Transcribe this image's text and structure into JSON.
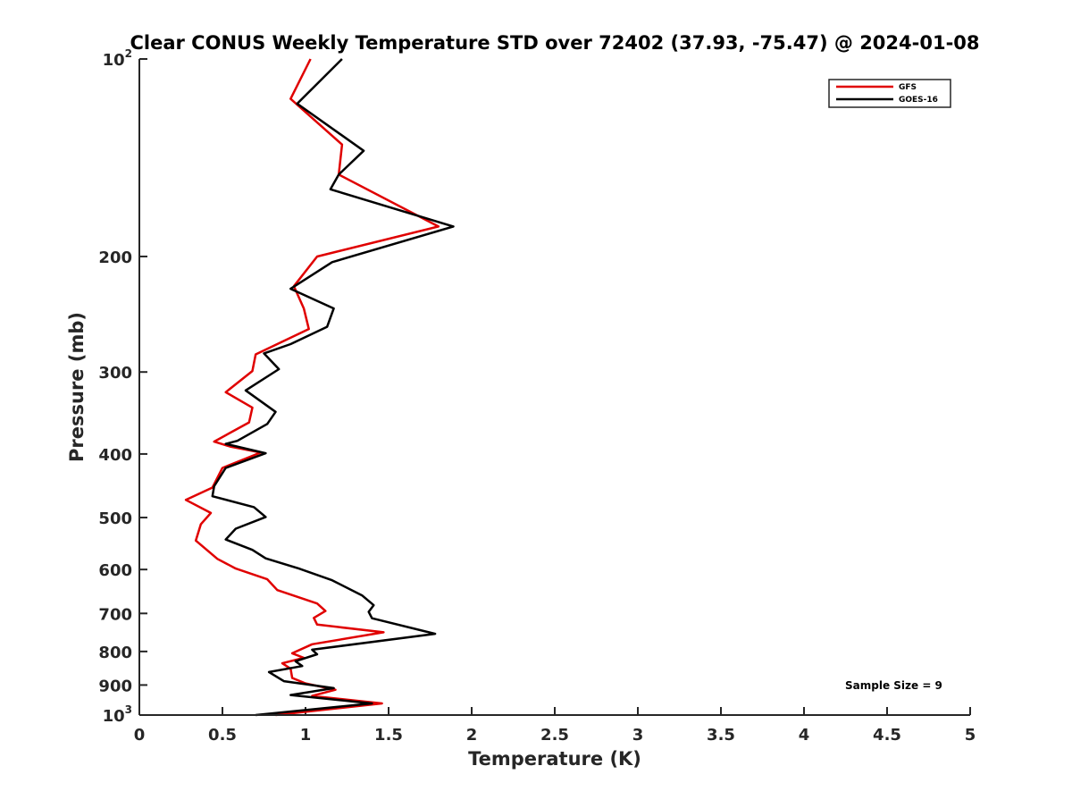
{
  "chart_data": {
    "type": "line",
    "title": "Clear CONUS Weekly Temperature STD over 72402 (37.93, -75.47) @ 2024-01-08",
    "xlabel": "Temperature (K)",
    "ylabel": "Pressure (mb)",
    "xlim": [
      0,
      5
    ],
    "ylim": [
      100,
      1000
    ],
    "yscale": "log",
    "yreversed": true,
    "x_ticks": [
      0,
      0.5,
      1,
      1.5,
      2,
      2.5,
      3,
      3.5,
      4,
      4.5,
      5
    ],
    "x_tick_labels": [
      "0",
      "0.5",
      "1",
      "1.5",
      "2",
      "2.5",
      "3",
      "3.5",
      "4",
      "4.5",
      "5"
    ],
    "y_ticks": [
      {
        "value": 100,
        "base": "10",
        "exp": "2"
      },
      {
        "value": 200,
        "label": "200"
      },
      {
        "value": 300,
        "label": "300"
      },
      {
        "value": 400,
        "label": "400"
      },
      {
        "value": 500,
        "label": "500"
      },
      {
        "value": 600,
        "label": "600"
      },
      {
        "value": 700,
        "label": "700"
      },
      {
        "value": 800,
        "label": "800"
      },
      {
        "value": 900,
        "label": "900"
      },
      {
        "value": 1000,
        "base": "10",
        "exp": "3"
      }
    ],
    "legend_position": "top-right",
    "annotation": "Sample Size = 9",
    "series": [
      {
        "name": "GFS",
        "color": "#e00000",
        "points": [
          [
            1.03,
            100
          ],
          [
            0.91,
            115
          ],
          [
            1.22,
            135
          ],
          [
            1.2,
            150
          ],
          [
            1.8,
            180
          ],
          [
            1.07,
            200
          ],
          [
            0.93,
            222
          ],
          [
            0.99,
            240
          ],
          [
            1.02,
            258
          ],
          [
            0.7,
            282
          ],
          [
            0.68,
            299
          ],
          [
            0.52,
            322
          ],
          [
            0.68,
            340
          ],
          [
            0.66,
            358
          ],
          [
            0.45,
            383
          ],
          [
            0.55,
            390
          ],
          [
            0.73,
            398
          ],
          [
            0.5,
            420
          ],
          [
            0.44,
            450
          ],
          [
            0.28,
            470
          ],
          [
            0.43,
            492
          ],
          [
            0.37,
            512
          ],
          [
            0.34,
            542
          ],
          [
            0.47,
            578
          ],
          [
            0.58,
            598
          ],
          [
            0.77,
            621
          ],
          [
            0.83,
            645
          ],
          [
            1.07,
            676
          ],
          [
            1.12,
            694
          ],
          [
            1.05,
            711
          ],
          [
            1.07,
            728
          ],
          [
            1.47,
            748
          ],
          [
            1.04,
            780
          ],
          [
            0.92,
            805
          ],
          [
            0.99,
            818
          ],
          [
            0.86,
            834
          ],
          [
            0.91,
            850
          ],
          [
            0.92,
            878
          ],
          [
            1.0,
            895
          ],
          [
            1.18,
            915
          ],
          [
            1.04,
            935
          ],
          [
            1.46,
            960
          ],
          [
            0.82,
            1000
          ]
        ]
      },
      {
        "name": "GOES-16",
        "color": "#000000",
        "points": [
          [
            1.22,
            100
          ],
          [
            0.95,
            117
          ],
          [
            1.35,
            138
          ],
          [
            1.2,
            150
          ],
          [
            1.15,
            158
          ],
          [
            1.89,
            180
          ],
          [
            1.16,
            204
          ],
          [
            0.91,
            224
          ],
          [
            1.17,
            240
          ],
          [
            1.13,
            256
          ],
          [
            0.91,
            272
          ],
          [
            0.75,
            281
          ],
          [
            0.84,
            297
          ],
          [
            0.64,
            320
          ],
          [
            0.82,
            345
          ],
          [
            0.77,
            360
          ],
          [
            0.59,
            382
          ],
          [
            0.52,
            386
          ],
          [
            0.76,
            399
          ],
          [
            0.52,
            420
          ],
          [
            0.45,
            448
          ],
          [
            0.44,
            464
          ],
          [
            0.69,
            482
          ],
          [
            0.76,
            499
          ],
          [
            0.58,
            520
          ],
          [
            0.52,
            540
          ],
          [
            0.68,
            560
          ],
          [
            0.76,
            577
          ],
          [
            0.96,
            598
          ],
          [
            1.16,
            623
          ],
          [
            1.34,
            657
          ],
          [
            1.41,
            680
          ],
          [
            1.38,
            696
          ],
          [
            1.4,
            712
          ],
          [
            1.78,
            752
          ],
          [
            1.04,
            795
          ],
          [
            1.07,
            808
          ],
          [
            0.94,
            828
          ],
          [
            0.98,
            842
          ],
          [
            0.78,
            860
          ],
          [
            0.87,
            888
          ],
          [
            1.17,
            910
          ],
          [
            0.91,
            932
          ],
          [
            1.4,
            960
          ],
          [
            0.7,
            1000
          ]
        ]
      }
    ]
  }
}
